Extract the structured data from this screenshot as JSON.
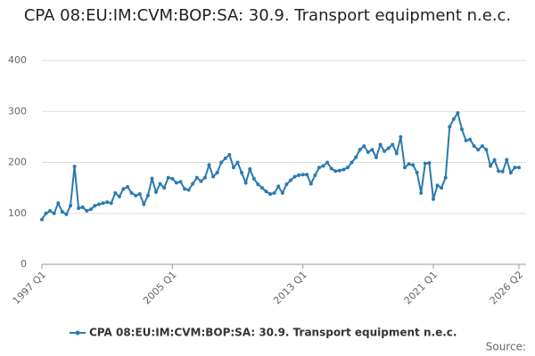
{
  "chart_data": {
    "type": "line",
    "title": "CPA 08:EU:IM:CVM:BOP:SA: 30.9. Transport equipment n.e.c.",
    "source": "Source:",
    "categories": [
      "1997 Q1",
      null,
      null,
      null,
      null,
      null,
      null,
      null,
      null,
      null,
      null,
      null,
      null,
      null,
      null,
      null,
      null,
      null,
      null,
      null,
      null,
      null,
      null,
      null,
      null,
      null,
      null,
      null,
      null,
      null,
      null,
      null,
      "2005 Q1",
      null,
      null,
      null,
      null,
      null,
      null,
      null,
      null,
      null,
      null,
      null,
      null,
      null,
      null,
      null,
      null,
      null,
      null,
      null,
      null,
      null,
      null,
      null,
      null,
      null,
      null,
      null,
      null,
      null,
      null,
      null,
      "2013 Q1",
      null,
      null,
      null,
      null,
      null,
      null,
      null,
      null,
      null,
      null,
      null,
      null,
      null,
      null,
      null,
      null,
      null,
      null,
      null,
      null,
      null,
      null,
      null,
      null,
      null,
      null,
      null,
      null,
      null,
      null,
      null,
      "2021 Q1",
      null,
      null,
      null,
      null,
      null,
      null,
      null,
      null,
      null,
      null,
      null,
      null,
      null,
      null,
      null,
      null,
      null,
      null,
      null,
      null,
      "2026 Q2"
    ],
    "series": [
      {
        "name": "CPA 08:EU:IM:CVM:BOP:SA: 30.9. Transport equipment n.e.c.",
        "color": "#2a7ab0",
        "values": [
          88,
          100,
          105,
          100,
          120,
          103,
          98,
          115,
          192,
          110,
          112,
          105,
          108,
          115,
          118,
          120,
          122,
          120,
          140,
          133,
          148,
          152,
          140,
          135,
          138,
          118,
          135,
          168,
          142,
          158,
          150,
          170,
          168,
          160,
          162,
          148,
          146,
          158,
          170,
          163,
          170,
          195,
          172,
          180,
          200,
          208,
          215,
          190,
          200,
          180,
          160,
          187,
          168,
          157,
          150,
          143,
          138,
          140,
          153,
          140,
          157,
          165,
          172,
          175,
          176,
          176,
          158,
          175,
          190,
          193,
          200,
          188,
          183,
          184,
          186,
          190,
          200,
          210,
          225,
          232,
          220,
          225,
          210,
          235,
          222,
          228,
          235,
          218,
          250,
          190,
          197,
          195,
          180,
          140,
          198,
          199,
          128,
          155,
          150,
          170,
          270,
          285,
          297,
          265,
          243,
          245,
          232,
          225,
          232,
          225,
          193,
          205,
          183,
          182,
          205,
          180,
          190,
          190
        ]
      }
    ],
    "ylim": [
      0,
      400
    ],
    "yticks": [
      0,
      100,
      200,
      300,
      400
    ],
    "grid": true
  }
}
